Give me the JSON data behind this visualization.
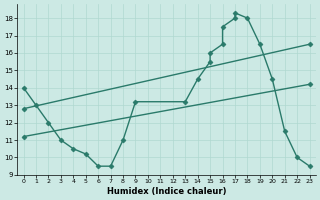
{
  "xlabel": "Humidex (Indice chaleur)",
  "xlim": [
    -0.5,
    23.5
  ],
  "ylim": [
    9,
    18.8
  ],
  "yticks": [
    9,
    10,
    11,
    12,
    13,
    14,
    15,
    16,
    17,
    18
  ],
  "xticks": [
    0,
    1,
    2,
    3,
    4,
    5,
    6,
    7,
    8,
    9,
    10,
    11,
    12,
    13,
    14,
    15,
    16,
    17,
    18,
    19,
    20,
    21,
    22,
    23
  ],
  "bg_color": "#cce9e4",
  "grid_color": "#b0d8d0",
  "line_color": "#2a7a6a",
  "line1_x": [
    0,
    1,
    2,
    3,
    4,
    5,
    6,
    7,
    8,
    9,
    13,
    14,
    15,
    15,
    16,
    16,
    17,
    17,
    18,
    19,
    20,
    21,
    22,
    23
  ],
  "line1_y": [
    14,
    13,
    12,
    11,
    10.5,
    10.2,
    9.5,
    9.5,
    11,
    13.2,
    13.2,
    14.5,
    15.5,
    16.0,
    16.5,
    17.5,
    18.0,
    18.3,
    18.0,
    16.5,
    14.5,
    11.5,
    10,
    9.5
  ],
  "line2_x": [
    0,
    23
  ],
  "line2_y": [
    12.8,
    16.5
  ],
  "line3_x": [
    0,
    23
  ],
  "line3_y": [
    11.2,
    14.2
  ],
  "marker": "D",
  "marker_size": 2.5,
  "line_width": 1.0,
  "tick_fontsize": 5,
  "xlabel_fontsize": 6
}
